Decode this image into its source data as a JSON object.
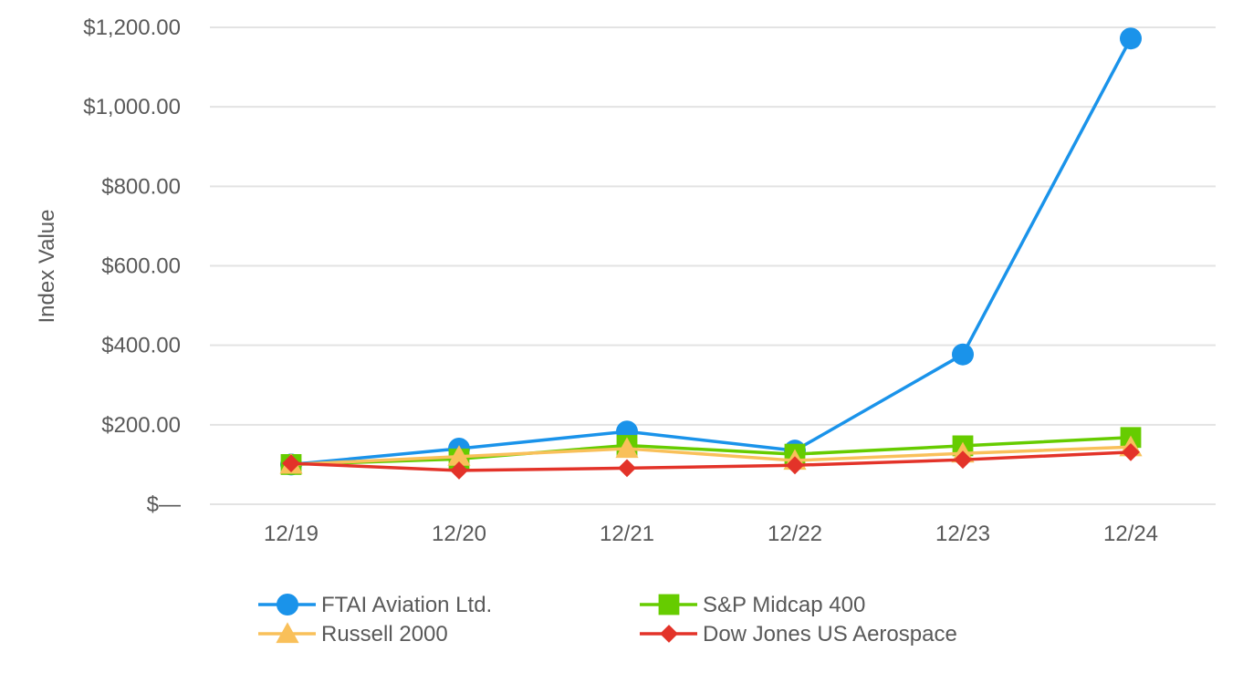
{
  "chart_data": {
    "type": "line",
    "ylabel": "Index Value",
    "categories": [
      "12/19",
      "12/20",
      "12/21",
      "12/22",
      "12/23",
      "12/24"
    ],
    "ylim": [
      0,
      1200
    ],
    "yticks": [
      {
        "value": 0,
        "label": "$—"
      },
      {
        "value": 200,
        "label": "$200.00"
      },
      {
        "value": 400,
        "label": "$400.00"
      },
      {
        "value": 600,
        "label": "$600.00"
      },
      {
        "value": 800,
        "label": "$800.00"
      },
      {
        "value": 1000,
        "label": "$1,000.00"
      },
      {
        "value": 1200,
        "label": "$1,200.00"
      }
    ],
    "grid": true,
    "legend_position": "bottom",
    "series": [
      {
        "name": "FTAI Aviation Ltd.",
        "color": "#1a93ea",
        "marker": "circle",
        "values": [
          100,
          140,
          183,
          135,
          377,
          1172
        ]
      },
      {
        "name": "S&P Midcap 400",
        "color": "#66cc00",
        "marker": "square",
        "values": [
          100,
          114,
          148,
          126,
          147,
          168
        ]
      },
      {
        "name": "Russell 2000",
        "color": "#f9c05a",
        "marker": "triangle",
        "values": [
          100,
          120,
          140,
          110,
          128,
          144
        ]
      },
      {
        "name": "Dow Jones US Aerospace",
        "color": "#e33329",
        "marker": "diamond",
        "values": [
          103,
          85,
          91,
          98,
          112,
          131
        ]
      }
    ]
  }
}
